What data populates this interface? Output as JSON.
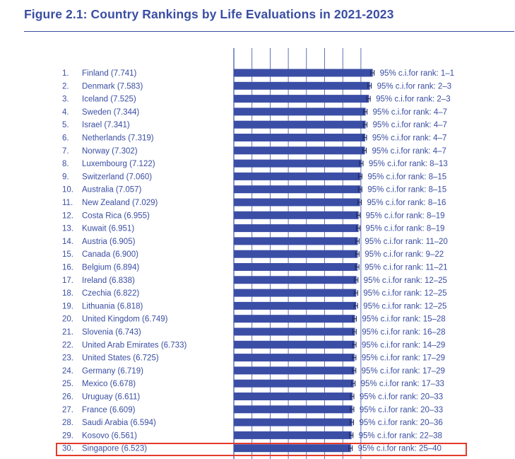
{
  "figure_title": "Figure 2.1: Country Rankings by Life Evaluations in 2021-2023",
  "colors": {
    "bar": "#3b4ea6",
    "text": "#3a4ea3",
    "grid": "#3a4ea3",
    "highlight": "#e53a2b"
  },
  "chart_data": {
    "type": "bar",
    "orientation": "horizontal",
    "title": "Figure 2.1: Country Rankings by Life Evaluations in 2021-2023",
    "grid": true,
    "rows": [
      {
        "rank": "1.",
        "country": "Finland",
        "score": 7.741,
        "label": "Finland (7.741)",
        "ci": "95% c.i.for rank: 1–1"
      },
      {
        "rank": "2.",
        "country": "Denmark",
        "score": 7.583,
        "label": "Denmark (7.583)",
        "ci": "95% c.i.for rank: 2–3"
      },
      {
        "rank": "3.",
        "country": "Iceland",
        "score": 7.525,
        "label": "Iceland (7.525)",
        "ci": "95% c.i.for rank: 2–3"
      },
      {
        "rank": "4.",
        "country": "Sweden",
        "score": 7.344,
        "label": "Sweden (7.344)",
        "ci": "95% c.i.for rank: 4–7"
      },
      {
        "rank": "5.",
        "country": "Israel",
        "score": 7.341,
        "label": "Israel (7.341)",
        "ci": "95% c.i.for rank: 4–7"
      },
      {
        "rank": "6.",
        "country": "Netherlands",
        "score": 7.319,
        "label": "Netherlands (7.319)",
        "ci": "95% c.i.for rank: 4–7"
      },
      {
        "rank": "7.",
        "country": "Norway",
        "score": 7.302,
        "label": "Norway (7.302)",
        "ci": "95% c.i.for rank: 4–7"
      },
      {
        "rank": "8.",
        "country": "Luxembourg",
        "score": 7.122,
        "label": "Luxembourg (7.122)",
        "ci": "95% c.i.for rank: 8–13"
      },
      {
        "rank": "9.",
        "country": "Switzerland",
        "score": 7.06,
        "label": "Switzerland (7.060)",
        "ci": "95% c.i.for rank: 8–15"
      },
      {
        "rank": "10.",
        "country": "Australia",
        "score": 7.057,
        "label": "Australia (7.057)",
        "ci": "95% c.i.for rank: 8–15"
      },
      {
        "rank": "11.",
        "country": "New Zealand",
        "score": 7.029,
        "label": "New Zealand (7.029)",
        "ci": "95% c.i.for rank: 8–16"
      },
      {
        "rank": "12.",
        "country": "Costa Rica",
        "score": 6.955,
        "label": "Costa Rica (6.955)",
        "ci": "95% c.i.for rank: 8–19"
      },
      {
        "rank": "13.",
        "country": "Kuwait",
        "score": 6.951,
        "label": "Kuwait (6.951)",
        "ci": "95% c.i.for rank: 8–19"
      },
      {
        "rank": "14.",
        "country": "Austria",
        "score": 6.905,
        "label": "Austria (6.905)",
        "ci": "95% c.i.for rank: 11–20"
      },
      {
        "rank": "15.",
        "country": "Canada",
        "score": 6.9,
        "label": "Canada (6.900)",
        "ci": "95% c.i.for rank: 9–22"
      },
      {
        "rank": "16.",
        "country": "Belgium",
        "score": 6.894,
        "label": "Belgium (6.894)",
        "ci": "95% c.i.for rank: 11–21"
      },
      {
        "rank": "17.",
        "country": "Ireland",
        "score": 6.838,
        "label": "Ireland (6.838)",
        "ci": "95% c.i.for rank: 12–25"
      },
      {
        "rank": "18.",
        "country": "Czechia",
        "score": 6.822,
        "label": "Czechia (6.822)",
        "ci": "95% c.i.for rank: 12–25"
      },
      {
        "rank": "19.",
        "country": "Lithuania",
        "score": 6.818,
        "label": "Lithuania (6.818)",
        "ci": "95% c.i.for rank: 12–25"
      },
      {
        "rank": "20.",
        "country": "United Kingdom",
        "score": 6.749,
        "label": "United Kingdom (6.749)",
        "ci": "95% c.i.for rank: 15–28"
      },
      {
        "rank": "21.",
        "country": "Slovenia",
        "score": 6.743,
        "label": "Slovenia (6.743)",
        "ci": "95% c.i.for rank: 16–28"
      },
      {
        "rank": "22.",
        "country": "United Arab Emirates",
        "score": 6.733,
        "label": "United Arab Emirates (6.733)",
        "ci": "95% c.i.for rank: 14–29"
      },
      {
        "rank": "23.",
        "country": "United States",
        "score": 6.725,
        "label": "United States (6.725)",
        "ci": "95% c.i.for rank: 17–29"
      },
      {
        "rank": "24.",
        "country": "Germany",
        "score": 6.719,
        "label": "Germany (6.719)",
        "ci": "95% c.i.for rank: 17–29"
      },
      {
        "rank": "25.",
        "country": "Mexico",
        "score": 6.678,
        "label": "Mexico (6.678)",
        "ci": "95% c.i.for rank: 17–33"
      },
      {
        "rank": "26.",
        "country": "Uruguay",
        "score": 6.611,
        "label": "Uruguay (6.611)",
        "ci": "95% c.i.for rank: 20–33"
      },
      {
        "rank": "27.",
        "country": "France",
        "score": 6.609,
        "label": "France (6.609)",
        "ci": "95% c.i.for rank: 20–33"
      },
      {
        "rank": "28.",
        "country": "Saudi Arabia",
        "score": 6.594,
        "label": "Saudi Arabia (6.594)",
        "ci": "95% c.i.for rank: 20–36"
      },
      {
        "rank": "29.",
        "country": "Kosovo",
        "score": 6.561,
        "label": "Kosovo (6.561)",
        "ci": "95% c.i.for rank: 22–38"
      },
      {
        "rank": "30.",
        "country": "Singapore",
        "score": 6.523,
        "label": "Singapore (6.523)",
        "ci": "95% c.i.for rank: 25–40",
        "highlighted": true
      }
    ]
  }
}
